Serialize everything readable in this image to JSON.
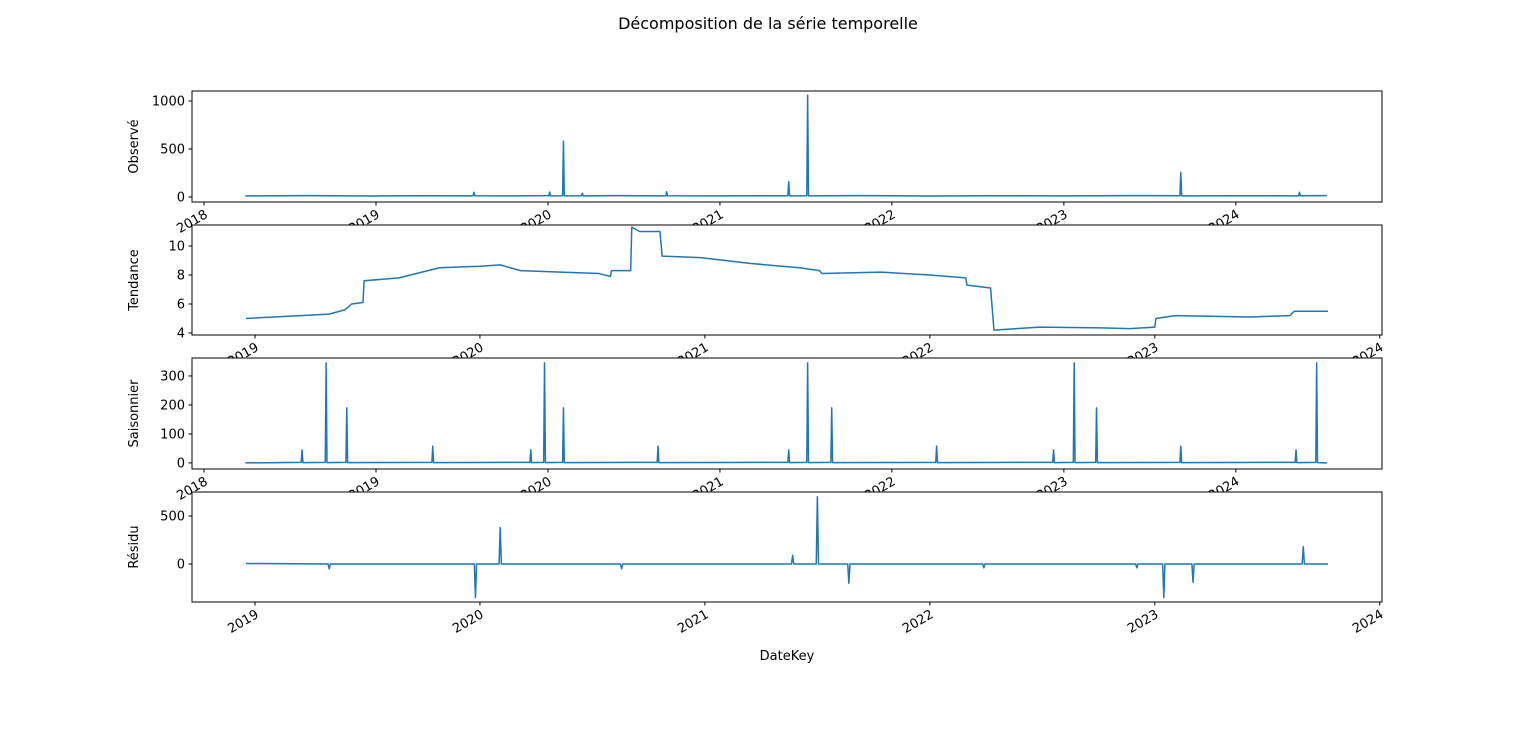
{
  "title": "Décomposition de la série temporelle",
  "chart_data": [
    {
      "type": "line",
      "ylabel": "Observé",
      "color": "#1f77b4",
      "x": [
        2018.24,
        2018.6,
        2019.0,
        2019.3,
        2019.565,
        2019.57,
        2019.575,
        2019.8,
        2020.005,
        2020.01,
        2020.015,
        2020.085,
        2020.09,
        2020.095,
        2020.195,
        2020.2,
        2020.205,
        2020.4,
        2020.685,
        2020.69,
        2020.695,
        2021.0,
        2021.395,
        2021.4,
        2021.405,
        2021.505,
        2021.51,
        2021.515,
        2021.8,
        2022.2,
        2022.6,
        2023.0,
        2023.4,
        2023.675,
        2023.68,
        2023.685,
        2024.0,
        2024.365,
        2024.37,
        2024.375,
        2024.53
      ],
      "values": [
        12,
        14,
        11,
        13,
        12,
        50,
        13,
        12,
        14,
        52,
        12,
        13,
        580,
        12,
        13,
        40,
        12,
        14,
        12,
        55,
        13,
        12,
        13,
        160,
        12,
        13,
        1060,
        12,
        14,
        11,
        13,
        12,
        14,
        13,
        255,
        12,
        13,
        12,
        50,
        13,
        14
      ],
      "xlim": [
        2017.93,
        2024.85
      ],
      "xticks": [
        2018,
        2019,
        2020,
        2021,
        2022,
        2023,
        2024
      ],
      "ylim": [
        -52,
        1104
      ],
      "yticks": [
        0,
        500,
        1000
      ]
    },
    {
      "type": "line",
      "ylabel": "Tendance",
      "color": "#1f77b4",
      "x": [
        2018.96,
        2019.2,
        2019.33,
        2019.4,
        2019.43,
        2019.48,
        2019.485,
        2019.64,
        2019.82,
        2020.0,
        2020.09,
        2020.18,
        2020.36,
        2020.53,
        2020.58,
        2020.585,
        2020.67,
        2020.675,
        2020.71,
        2020.8,
        2020.81,
        2020.98,
        2021.2,
        2021.42,
        2021.51,
        2021.52,
        2021.78,
        2022.0,
        2022.16,
        2022.165,
        2022.27,
        2022.285,
        2022.49,
        2022.76,
        2022.89,
        2023.0,
        2023.005,
        2023.09,
        2023.42,
        2023.6,
        2023.62,
        2023.77
      ],
      "values": [
        5.0,
        5.2,
        5.3,
        5.6,
        6.0,
        6.1,
        7.6,
        7.8,
        8.5,
        8.6,
        8.7,
        8.3,
        8.2,
        8.1,
        7.9,
        8.3,
        8.3,
        11.3,
        11.0,
        11.0,
        9.3,
        9.2,
        8.8,
        8.5,
        8.3,
        8.1,
        8.2,
        8.0,
        7.8,
        7.3,
        7.1,
        4.2,
        4.4,
        4.35,
        4.3,
        4.4,
        5.0,
        5.2,
        5.1,
        5.2,
        5.5,
        5.5
      ],
      "xlim": [
        2018.72,
        2024.01
      ],
      "xticks": [
        2019,
        2020,
        2021,
        2022,
        2023,
        2024
      ],
      "ylim": [
        3.86,
        11.45
      ],
      "yticks": [
        4,
        6,
        8,
        10
      ]
    },
    {
      "type": "line",
      "ylabel": "Saisonnier",
      "color": "#1f77b4",
      "x": [
        2018.24,
        2018.565,
        2018.57,
        2018.575,
        2018.705,
        2018.71,
        2018.715,
        2018.825,
        2018.83,
        2018.835,
        2019.325,
        2019.33,
        2019.335,
        2019.895,
        2019.9,
        2019.905,
        2019.975,
        2019.98,
        2019.985,
        2020.085,
        2020.09,
        2020.095,
        2020.635,
        2020.64,
        2020.645,
        2021.395,
        2021.4,
        2021.405,
        2021.505,
        2021.51,
        2021.515,
        2021.645,
        2021.65,
        2021.655,
        2022.255,
        2022.26,
        2022.265,
        2022.935,
        2022.94,
        2022.945,
        2023.055,
        2023.06,
        2023.065,
        2023.185,
        2023.19,
        2023.195,
        2023.675,
        2023.68,
        2023.685,
        2024.345,
        2024.35,
        2024.355,
        2024.465,
        2024.47,
        2024.475,
        2024.53
      ],
      "values": [
        0,
        2,
        45,
        1,
        2,
        345,
        1,
        2,
        190,
        1,
        2,
        58,
        1,
        2,
        45,
        1,
        2,
        345,
        1,
        2,
        190,
        1,
        2,
        58,
        1,
        2,
        45,
        1,
        2,
        345,
        1,
        2,
        190,
        1,
        2,
        58,
        1,
        2,
        45,
        1,
        2,
        345,
        1,
        2,
        190,
        1,
        2,
        58,
        1,
        2,
        45,
        1,
        2,
        345,
        1,
        0
      ],
      "xlim": [
        2017.93,
        2024.85
      ],
      "xticks": [
        2018,
        2019,
        2020,
        2021,
        2022,
        2023,
        2024
      ],
      "ylim": [
        -21,
        362
      ],
      "yticks": [
        0,
        100,
        200,
        300
      ]
    },
    {
      "type": "line",
      "ylabel": "Résidu",
      "xlabel": "DateKey",
      "color": "#1f77b4",
      "x": [
        2018.96,
        2019.325,
        2019.33,
        2019.335,
        2019.975,
        2019.98,
        2019.985,
        2020.085,
        2020.09,
        2020.095,
        2020.625,
        2020.63,
        2020.635,
        2021.385,
        2021.39,
        2021.395,
        2021.495,
        2021.5,
        2021.505,
        2021.635,
        2021.64,
        2021.645,
        2022.235,
        2022.24,
        2022.245,
        2022.915,
        2022.92,
        2022.925,
        2023.035,
        2023.04,
        2023.045,
        2023.165,
        2023.17,
        2023.175,
        2023.655,
        2023.66,
        2023.665,
        2023.77
      ],
      "values": [
        5,
        0,
        -50,
        0,
        0,
        -350,
        0,
        0,
        380,
        0,
        0,
        -50,
        0,
        0,
        90,
        0,
        0,
        700,
        0,
        0,
        -200,
        0,
        0,
        -40,
        0,
        0,
        -40,
        0,
        0,
        -350,
        0,
        0,
        -190,
        0,
        0,
        180,
        0,
        0
      ],
      "xlim": [
        2018.72,
        2024.01
      ],
      "xticks": [
        2019,
        2020,
        2021,
        2022,
        2023,
        2024
      ],
      "ylim": [
        -396,
        750
      ],
      "yticks": [
        0,
        500
      ]
    }
  ]
}
